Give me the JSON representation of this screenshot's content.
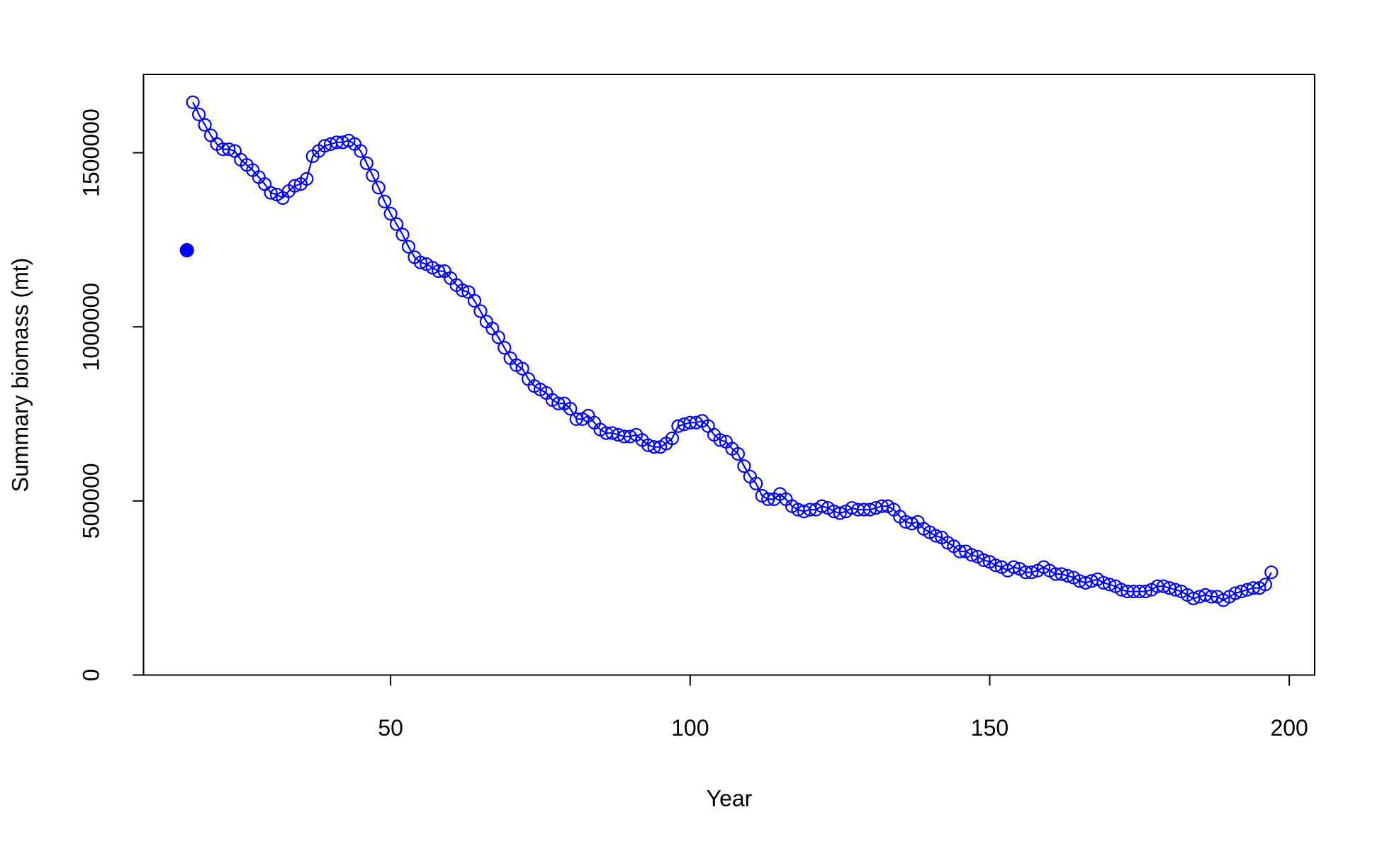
{
  "chart_data": {
    "type": "scatter",
    "x_label": "Year",
    "y_label": "Summary biomass (mt)",
    "xlim": [
      8.76,
      204.24
    ],
    "ylim": [
      0,
      1725000
    ],
    "xticks": [
      50,
      100,
      150,
      200
    ],
    "yticks": [
      0,
      500000,
      1000000,
      1500000
    ],
    "series": [
      {
        "color": "#0000ff",
        "marker": "filled",
        "line": false,
        "x": [
          16
        ],
        "values": [
          1220000
        ]
      },
      {
        "color": "#0000ff",
        "marker": "open",
        "line": true,
        "x": [
          17,
          18,
          19,
          20,
          21,
          22,
          23,
          24,
          25,
          26,
          27,
          28,
          29,
          30,
          31,
          32,
          33,
          34,
          35,
          36,
          37,
          38,
          39,
          40,
          41,
          42,
          43,
          44,
          45,
          46,
          47,
          48,
          49,
          50,
          51,
          52,
          53,
          54,
          55,
          56,
          57,
          58,
          59,
          60,
          61,
          62,
          63,
          64,
          65,
          66,
          67,
          68,
          69,
          70,
          71,
          72,
          73,
          74,
          75,
          76,
          77,
          78,
          79,
          80,
          81,
          82,
          83,
          84,
          85,
          86,
          87,
          88,
          89,
          90,
          91,
          92,
          93,
          94,
          95,
          96,
          97,
          98,
          99,
          100,
          101,
          102,
          103,
          104,
          105,
          106,
          107,
          108,
          109,
          110,
          111,
          112,
          113,
          114,
          115,
          116,
          117,
          118,
          119,
          120,
          121,
          122,
          123,
          124,
          125,
          126,
          127,
          128,
          129,
          130,
          131,
          132,
          133,
          134,
          135,
          136,
          137,
          138,
          139,
          140,
          141,
          142,
          143,
          144,
          145,
          146,
          147,
          148,
          149,
          150,
          151,
          152,
          153,
          154,
          155,
          156,
          157,
          158,
          159,
          160,
          161,
          162,
          163,
          164,
          165,
          166,
          167,
          168,
          169,
          170,
          171,
          172,
          173,
          174,
          175,
          176,
          177,
          178,
          179,
          180,
          181,
          182,
          183,
          184,
          185,
          186,
          187,
          188,
          189,
          190,
          191,
          192,
          193,
          194,
          195,
          196,
          197
        ],
        "values": [
          1645000,
          1610000,
          1580000,
          1550000,
          1525000,
          1510000,
          1510000,
          1505000,
          1480000,
          1465000,
          1450000,
          1430000,
          1410000,
          1385000,
          1380000,
          1370000,
          1390000,
          1405000,
          1410000,
          1425000,
          1490000,
          1505000,
          1520000,
          1525000,
          1530000,
          1530000,
          1535000,
          1525000,
          1505000,
          1470000,
          1435000,
          1400000,
          1360000,
          1325000,
          1295000,
          1265000,
          1230000,
          1200000,
          1185000,
          1180000,
          1170000,
          1160000,
          1160000,
          1140000,
          1120000,
          1105000,
          1100000,
          1075000,
          1045000,
          1015000,
          995000,
          970000,
          940000,
          910000,
          890000,
          880000,
          850000,
          830000,
          820000,
          810000,
          790000,
          780000,
          780000,
          765000,
          735000,
          735000,
          745000,
          725000,
          705000,
          695000,
          695000,
          690000,
          685000,
          685000,
          690000,
          675000,
          660000,
          655000,
          655000,
          665000,
          680000,
          715000,
          720000,
          725000,
          725000,
          730000,
          715000,
          690000,
          675000,
          670000,
          650000,
          635000,
          600000,
          570000,
          550000,
          515000,
          505000,
          505000,
          520000,
          505000,
          485000,
          475000,
          470000,
          475000,
          475000,
          485000,
          480000,
          470000,
          465000,
          470000,
          480000,
          475000,
          475000,
          475000,
          480000,
          485000,
          485000,
          475000,
          455000,
          440000,
          435000,
          440000,
          420000,
          410000,
          400000,
          395000,
          380000,
          370000,
          355000,
          355000,
          345000,
          340000,
          330000,
          325000,
          315000,
          310000,
          300000,
          310000,
          305000,
          295000,
          295000,
          300000,
          310000,
          300000,
          290000,
          290000,
          285000,
          280000,
          270000,
          265000,
          270000,
          275000,
          265000,
          260000,
          255000,
          245000,
          240000,
          240000,
          240000,
          240000,
          245000,
          255000,
          255000,
          250000,
          245000,
          240000,
          230000,
          220000,
          225000,
          230000,
          225000,
          225000,
          215000,
          225000,
          235000,
          240000,
          245000,
          250000,
          250000,
          260000,
          295000
        ]
      }
    ]
  }
}
